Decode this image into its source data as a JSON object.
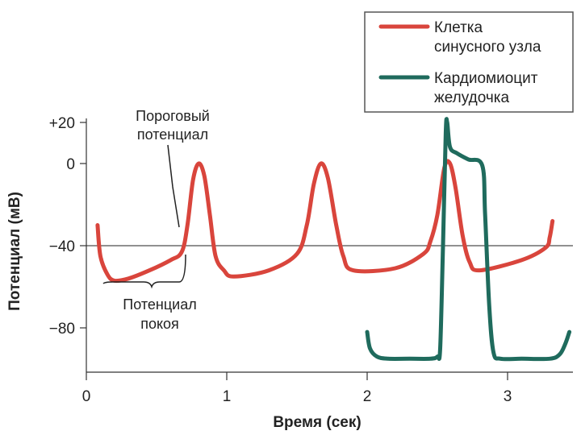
{
  "chart_data": {
    "type": "line",
    "xlabel": "Время (сек)",
    "ylabel": "Потенциал (мВ)",
    "xlim": [
      0,
      3.5
    ],
    "ylim": [
      -100,
      25
    ],
    "x_ticks": [
      0,
      1,
      2,
      3
    ],
    "x_tick_labels": [
      "0",
      "1",
      "2",
      "3"
    ],
    "y_ticks": [
      20,
      0,
      -40,
      -80
    ],
    "y_tick_labels": [
      "+20",
      "0",
      "−40",
      "−80"
    ],
    "reference_line": {
      "y": -40
    },
    "grid": false,
    "legend_position": "top-right",
    "series": [
      {
        "name": "Клетка синусного узла",
        "color": "#d9453c",
        "x": [
          0.08,
          0.1,
          0.15,
          0.2,
          0.3,
          0.45,
          0.6,
          0.68,
          0.72,
          0.76,
          0.8,
          0.84,
          0.88,
          0.92,
          0.98,
          1.05,
          1.3,
          1.5,
          1.57,
          1.62,
          1.67,
          1.72,
          1.78,
          1.83,
          1.9,
          2.2,
          2.4,
          2.45,
          2.5,
          2.55,
          2.59,
          2.63,
          2.68,
          2.73,
          2.8,
          3.1,
          3.27,
          3.3,
          3.32
        ],
        "y": [
          -30,
          -45,
          -54,
          -57,
          -56,
          -52,
          -47,
          -43,
          -30,
          -8,
          0,
          -6,
          -25,
          -45,
          -52,
          -55,
          -52,
          -44,
          -30,
          -10,
          0,
          -7,
          -30,
          -45,
          -52,
          -51,
          -44,
          -38,
          -25,
          -2,
          0,
          -12,
          -35,
          -48,
          -52,
          -47,
          -41,
          -36,
          -28
        ]
      },
      {
        "name": "Кардиомиоцит желудочка",
        "color": "#1f6b5d",
        "x": [
          2.0,
          2.02,
          2.07,
          2.15,
          2.3,
          2.45,
          2.5,
          2.52,
          2.54,
          2.56,
          2.57,
          2.59,
          2.64,
          2.72,
          2.82,
          2.84,
          2.87,
          2.9,
          2.95,
          3.1,
          3.3,
          3.37,
          3.41,
          3.44
        ],
        "y": [
          -82,
          -90,
          -94,
          -95,
          -95,
          -95,
          -94,
          -90,
          -40,
          15,
          20,
          8,
          5,
          2,
          -1,
          -25,
          -70,
          -92,
          -95,
          -95,
          -95,
          -93,
          -88,
          -82
        ]
      }
    ],
    "annotations": {
      "threshold": "Пороговый потенциал",
      "threshold_lines": [
        "Пороговый",
        "потенциал"
      ],
      "resting": "Потенциал покоя",
      "resting_lines": [
        "Потенциал",
        "покоя"
      ]
    },
    "legend": {
      "sinus_lines": [
        "Клетка",
        "синусного узла"
      ],
      "ventricular_lines": [
        "Кардиомиоцит",
        "желудочка"
      ]
    }
  }
}
